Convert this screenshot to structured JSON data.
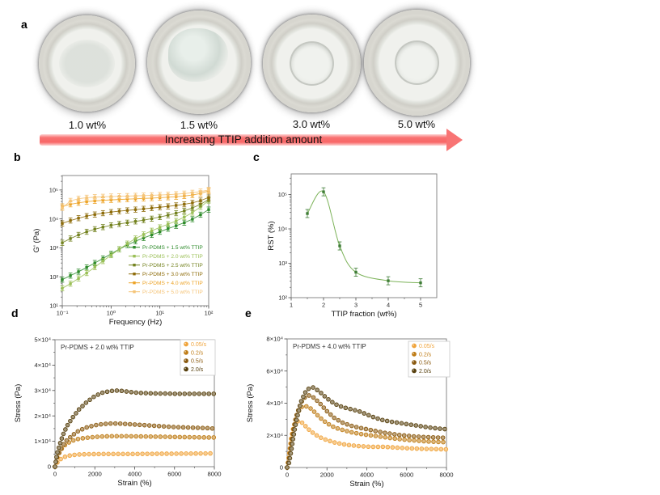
{
  "panels": {
    "a": {
      "letter": "a",
      "plates": [
        {
          "label": "1.0 wt%"
        },
        {
          "label": "1.5 wt%"
        },
        {
          "label": "3.0 wt%"
        },
        {
          "label": "5.0 wt%"
        }
      ],
      "arrow_label": "Increasing TTIP addition amount",
      "arrow_color": "#f87070"
    },
    "b": {
      "letter": "b"
    },
    "c": {
      "letter": "c"
    },
    "d": {
      "letter": "d"
    },
    "e": {
      "letter": "e"
    }
  },
  "chart_data": [
    {
      "id": "b",
      "type": "line",
      "title": "",
      "xlabel": "Frequency (Hz)",
      "ylabel": "G' (Pa)",
      "xscale": "log",
      "yscale": "log",
      "xrange": [
        0.1,
        100
      ],
      "yrange": [
        10,
        316228
      ],
      "xticks": [
        {
          "v": 0.1,
          "label": "10⁻¹"
        },
        {
          "v": 1,
          "label": "10⁰"
        },
        {
          "v": 10,
          "label": "10¹"
        },
        {
          "v": 100,
          "label": "10²"
        }
      ],
      "yticks": [
        {
          "v": 10,
          "label": "10¹"
        },
        {
          "v": 100,
          "label": "10²"
        },
        {
          "v": 1000,
          "label": "10³"
        },
        {
          "v": 10000,
          "label": "10⁴"
        },
        {
          "v": 100000,
          "label": "10⁵"
        }
      ],
      "x": [
        0.1,
        0.147,
        0.215,
        0.316,
        0.464,
        0.681,
        1,
        1.47,
        2.15,
        3.16,
        4.64,
        6.81,
        10,
        14.7,
        21.5,
        31.6,
        46.4,
        68.1,
        100
      ],
      "series": [
        {
          "name": "Pr-PDMS + 1.5 wt% TTIP",
          "color": "#2e8b2b",
          "y": [
            80,
            110,
            150,
            210,
            300,
            430,
            620,
            900,
            1250,
            1700,
            2200,
            2800,
            3600,
            4600,
            5800,
            7400,
            9800,
            14000,
            21000
          ]
        },
        {
          "name": "Pr-PDMS + 2.0 wt% TTIP",
          "color": "#9abf55",
          "y": [
            40,
            58,
            88,
            135,
            215,
            350,
            560,
            900,
            1400,
            2100,
            2900,
            3900,
            5100,
            6600,
            8500,
            11500,
            16500,
            26000,
            43000
          ]
        },
        {
          "name": "Pr-PDMS + 2.5 wt% TTIP",
          "color": "#73821f",
          "y": [
            1500,
            2100,
            2800,
            3600,
            4400,
            5200,
            6000,
            6700,
            7400,
            8200,
            9100,
            10200,
            11600,
            13400,
            15800,
            19000,
            24000,
            32000,
            47000
          ]
        },
        {
          "name": "Pr-PDMS + 3.0 wt% TTIP",
          "color": "#8e6c0a",
          "y": [
            7000,
            8800,
            10600,
            12500,
            14200,
            15800,
            17200,
            18500,
            19700,
            21000,
            22300,
            23700,
            25300,
            27100,
            29300,
            32000,
            36000,
            43000,
            55000
          ]
        },
        {
          "name": "Pr-PDMS + 4.0 wt% TTIP",
          "color": "#eda428",
          "y": [
            27000,
            32000,
            36000,
            39500,
            42000,
            44000,
            45500,
            47000,
            48300,
            49600,
            51000,
            52500,
            54200,
            56200,
            58700,
            62000,
            67000,
            76000,
            93000
          ]
        },
        {
          "name": "Pr-PDMS + 5.0 wt% TTIP",
          "color": "#f5c478",
          "y": [
            24000,
            42000,
            50000,
            54000,
            56500,
            58200,
            59500,
            60600,
            61700,
            62800,
            64000,
            65400,
            67000,
            69000,
            71500,
            75000,
            80000,
            88000,
            100000
          ]
        }
      ]
    },
    {
      "id": "c",
      "type": "line",
      "title": "",
      "xlabel": "TTIP fraction (wt%)",
      "ylabel": "RST (%)",
      "xscale": "linear",
      "yscale": "log",
      "xrange": [
        1,
        5.5
      ],
      "yrange": [
        100,
        398107
      ],
      "xticks": [
        {
          "v": 1,
          "label": "1"
        },
        {
          "v": 2,
          "label": "2"
        },
        {
          "v": 3,
          "label": "3"
        },
        {
          "v": 4,
          "label": "4"
        },
        {
          "v": 5,
          "label": "5"
        }
      ],
      "yticks": [
        {
          "v": 100,
          "label": "10²"
        },
        {
          "v": 1000,
          "label": "10³"
        },
        {
          "v": 10000,
          "label": "10⁴"
        },
        {
          "v": 100000,
          "label": "10⁵"
        }
      ],
      "series": [
        {
          "name": "RST",
          "color": "#3f7d36",
          "line_color": "#7db35a",
          "smooth": true,
          "x": [
            1.5,
            2,
            2.5,
            3,
            4,
            5
          ],
          "y": [
            28000,
            120000,
            3200,
            550,
            310,
            270
          ]
        }
      ]
    },
    {
      "id": "d",
      "type": "scatter",
      "title": "Pr-PDMS + 2.0 wt% TTIP",
      "xlabel": "Strain (%)",
      "ylabel": "Stress (Pa)",
      "xscale": "linear",
      "yscale": "linear",
      "xrange": [
        0,
        8000
      ],
      "yrange": [
        0,
        50000
      ],
      "xticks": [
        {
          "v": 0,
          "label": "0"
        },
        {
          "v": 2000,
          "label": "2000"
        },
        {
          "v": 4000,
          "label": "4000"
        },
        {
          "v": 6000,
          "label": "6000"
        },
        {
          "v": 8000,
          "label": "8000"
        }
      ],
      "yticks": [
        {
          "v": 0,
          "label": "0"
        },
        {
          "v": 10000,
          "label": "1×10⁴"
        },
        {
          "v": 20000,
          "label": "2×10⁴"
        },
        {
          "v": 30000,
          "label": "3×10⁴"
        },
        {
          "v": 40000,
          "label": "4×10⁴"
        },
        {
          "v": 50000,
          "label": "5×10⁴"
        }
      ],
      "x": [
        0,
        100,
        250,
        400,
        600,
        900,
        1200,
        1600,
        2000,
        2400,
        2800,
        3200,
        3600,
        4000,
        4400,
        4800,
        5200,
        5600,
        6000,
        6400,
        6800,
        7200,
        7600,
        8000
      ],
      "series": [
        {
          "name": "0.05/s",
          "color": "#f0a43c",
          "y": [
            0,
            1500,
            2800,
            3600,
            4200,
            4600,
            4800,
            4900,
            4950,
            5000,
            5000,
            5000,
            5000,
            5000,
            5050,
            5050,
            5100,
            5100,
            5100,
            5150,
            5150,
            5200,
            5200,
            5250
          ]
        },
        {
          "name": "0.2/s",
          "color": "#bf7d18",
          "y": [
            0,
            3500,
            6000,
            7800,
            9200,
            10300,
            11000,
            11400,
            11700,
            11900,
            12000,
            12000,
            12000,
            11950,
            11900,
            11850,
            11800,
            11750,
            11700,
            11650,
            11600,
            11550,
            11500,
            11500
          ]
        },
        {
          "name": "0.5/s",
          "color": "#8a5a10",
          "y": [
            0,
            4000,
            6500,
            8500,
            10500,
            12500,
            14200,
            15500,
            16300,
            16800,
            17000,
            17000,
            16800,
            16600,
            16400,
            16200,
            16000,
            15800,
            15600,
            15500,
            15400,
            15300,
            15200,
            15000
          ]
        },
        {
          "name": "2.0/s",
          "color": "#57400e",
          "y": [
            0,
            5000,
            9000,
            12500,
            16000,
            19500,
            22500,
            25500,
            27800,
            29200,
            29800,
            30000,
            29600,
            29200,
            29000,
            28900,
            28800,
            28800,
            28700,
            28700,
            28700,
            28700,
            28700,
            28700
          ]
        }
      ]
    },
    {
      "id": "e",
      "type": "scatter",
      "title": "Pr-PDMS + 4.0 wt% TTIP",
      "xlabel": "Strain (%)",
      "ylabel": "Stress (Pa)",
      "xscale": "linear",
      "yscale": "linear",
      "xrange": [
        0,
        8000
      ],
      "yrange": [
        0,
        80000
      ],
      "xticks": [
        {
          "v": 0,
          "label": "0"
        },
        {
          "v": 2000,
          "label": "2000"
        },
        {
          "v": 4000,
          "label": "4000"
        },
        {
          "v": 6000,
          "label": "6000"
        },
        {
          "v": 8000,
          "label": "8000"
        }
      ],
      "yticks": [
        {
          "v": 0,
          "label": "0"
        },
        {
          "v": 20000,
          "label": "2×10⁴"
        },
        {
          "v": 40000,
          "label": "4×10⁴"
        },
        {
          "v": 60000,
          "label": "6×10⁴"
        },
        {
          "v": 80000,
          "label": "8×10⁴"
        }
      ],
      "x": [
        0,
        100,
        200,
        300,
        400,
        500,
        700,
        900,
        1100,
        1300,
        1600,
        2000,
        2400,
        2800,
        3200,
        3600,
        4000,
        4400,
        4800,
        5200,
        5600,
        6000,
        6400,
        6800,
        7200,
        7600,
        8000
      ],
      "series": [
        {
          "name": "0.05/s",
          "color": "#f0a43c",
          "y": [
            0,
            8000,
            18000,
            24000,
            27500,
            28800,
            28500,
            26000,
            23500,
            21500,
            19000,
            17000,
            15500,
            14500,
            13800,
            13300,
            13000,
            12800,
            12900,
            12600,
            12300,
            12000,
            11800,
            11600,
            11500,
            11400,
            11300
          ]
        },
        {
          "name": "0.2/s",
          "color": "#bf7d18",
          "y": [
            0,
            6000,
            15000,
            23000,
            29000,
            33500,
            37500,
            38300,
            37500,
            35500,
            31500,
            27500,
            24800,
            23300,
            22000,
            21000,
            20300,
            19700,
            19000,
            18300,
            17700,
            17200,
            16800,
            16400,
            16100,
            15900,
            15700
          ]
        },
        {
          "name": "0.5/s",
          "color": "#8a5a10",
          "y": [
            0,
            5000,
            13000,
            21000,
            28000,
            33500,
            40500,
            43800,
            44800,
            43800,
            40500,
            35000,
            30500,
            27800,
            26000,
            24800,
            23800,
            22800,
            21800,
            21000,
            20300,
            19800,
            19300,
            19000,
            18800,
            18600,
            18500
          ]
        },
        {
          "name": "2.0/s",
          "color": "#57400e",
          "y": [
            0,
            3000,
            10000,
            18000,
            25000,
            31000,
            41000,
            46500,
            49300,
            49800,
            47500,
            43000,
            39500,
            37500,
            36300,
            35000,
            33000,
            31000,
            29500,
            28500,
            27800,
            27000,
            26300,
            25500,
            24800,
            24200,
            23800
          ]
        }
      ]
    }
  ]
}
